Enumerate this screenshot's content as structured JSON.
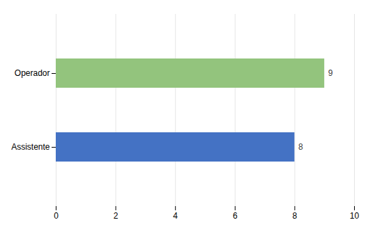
{
  "chart_data": {
    "type": "bar",
    "orientation": "horizontal",
    "categories": [
      "Assistente",
      "Operador"
    ],
    "values": [
      8,
      9
    ],
    "colors": [
      "#4472c4",
      "#93c47d"
    ],
    "xlim": [
      0,
      10
    ],
    "xticks": [
      0,
      2,
      4,
      6,
      8,
      10
    ],
    "grid": true,
    "data_labels": true
  }
}
